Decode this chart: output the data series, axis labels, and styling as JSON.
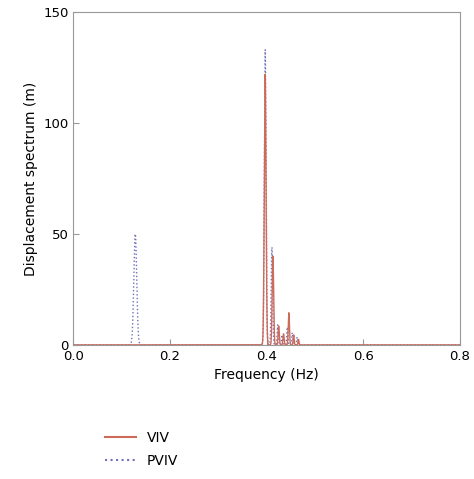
{
  "title": "",
  "xlabel": "Frequency (Hz)",
  "ylabel": "Displacement spectrum (m)",
  "xlim": [
    0.0,
    0.8
  ],
  "ylim": [
    0,
    150
  ],
  "yticks": [
    0,
    50,
    100,
    150
  ],
  "xticks": [
    0.0,
    0.2,
    0.4,
    0.6,
    0.8
  ],
  "viv_color": "#cd6b5a",
  "pviv_color": "#7070bb",
  "background_color": "#ffffff",
  "legend_labels": [
    "VIV",
    "PVIV"
  ],
  "figsize": [
    4.74,
    4.79
  ],
  "dpi": 100,
  "viv_peaks": [
    [
      0.397,
      122.0
    ],
    [
      0.413,
      40.0
    ],
    [
      0.425,
      8.5
    ],
    [
      0.435,
      5.0
    ],
    [
      0.446,
      14.5
    ],
    [
      0.456,
      4.5
    ],
    [
      0.466,
      2.5
    ]
  ],
  "pviv_peaks": [
    [
      0.128,
      50.0
    ],
    [
      0.397,
      133.0
    ],
    [
      0.411,
      44.0
    ],
    [
      0.423,
      9.0
    ],
    [
      0.432,
      4.5
    ],
    [
      0.443,
      8.0
    ],
    [
      0.453,
      5.5
    ],
    [
      0.463,
      3.5
    ]
  ],
  "viv_peak_widths": [
    0.0018,
    0.0015,
    0.0012,
    0.0012,
    0.0012,
    0.001,
    0.001
  ],
  "pviv_peak_widths": [
    0.003,
    0.0018,
    0.0015,
    0.0012,
    0.0012,
    0.0012,
    0.001,
    0.001
  ]
}
